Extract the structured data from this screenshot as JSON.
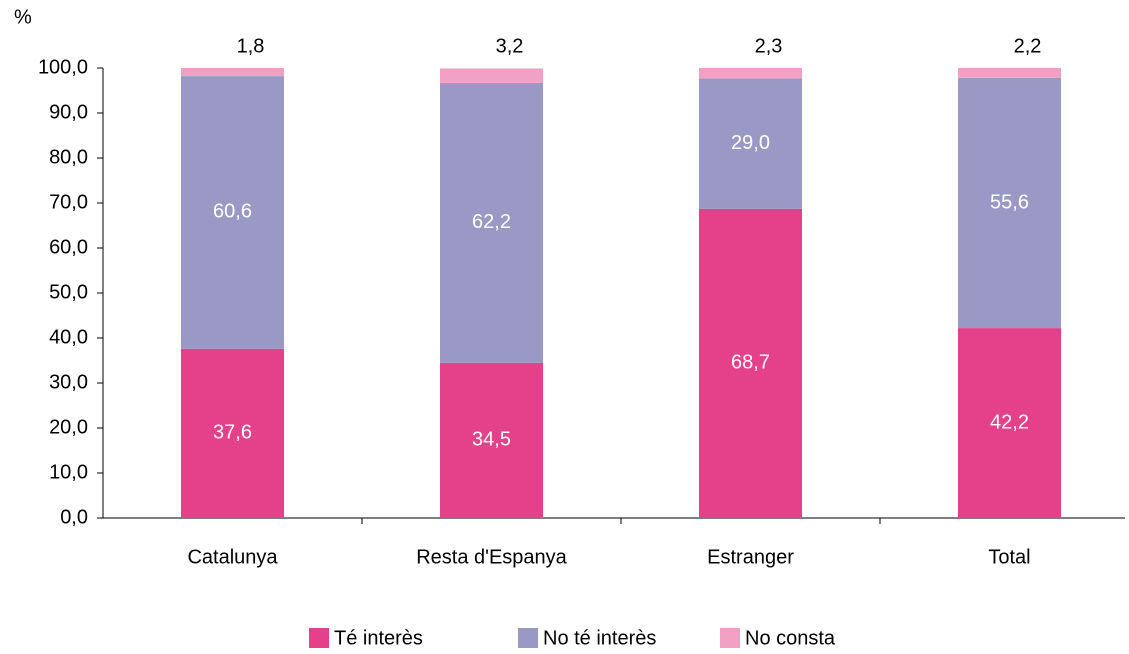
{
  "chart_data": {
    "type": "stacked_bar",
    "y_label": "%",
    "categories": [
      "Catalunya",
      "Resta d'Espanya",
      "Estranger",
      "Total"
    ],
    "series": [
      {
        "name": "Té interès",
        "color": "#e5408a",
        "values": [
          37.6,
          34.5,
          68.7,
          42.2
        ],
        "value_labels": [
          "37,6",
          "34,5",
          "68,7",
          "42,2"
        ]
      },
      {
        "name": "No té interès",
        "color": "#9a99c6",
        "values": [
          60.6,
          62.2,
          29.0,
          55.6
        ],
        "value_labels": [
          "60,6",
          "62,2",
          "29,0",
          "55,6"
        ]
      },
      {
        "name": "No consta",
        "color": "#f2a1c5",
        "values": [
          1.8,
          3.2,
          2.3,
          2.2
        ],
        "value_labels": [
          "1,8",
          "3,2",
          "2,3",
          "2,2"
        ]
      }
    ],
    "ylim": [
      0,
      100
    ],
    "yticks": [
      {
        "value": 0,
        "label": "0,0"
      },
      {
        "value": 10,
        "label": "10,0"
      },
      {
        "value": 20,
        "label": "20,0"
      },
      {
        "value": 30,
        "label": "30,0"
      },
      {
        "value": 40,
        "label": "40,0"
      },
      {
        "value": 50,
        "label": "50,0"
      },
      {
        "value": 60,
        "label": "60,0"
      },
      {
        "value": 70,
        "label": "70,0"
      },
      {
        "value": 80,
        "label": "80,0"
      },
      {
        "value": 90,
        "label": "90,0"
      },
      {
        "value": 100,
        "label": "100,0"
      }
    ],
    "legend": "bottom"
  }
}
